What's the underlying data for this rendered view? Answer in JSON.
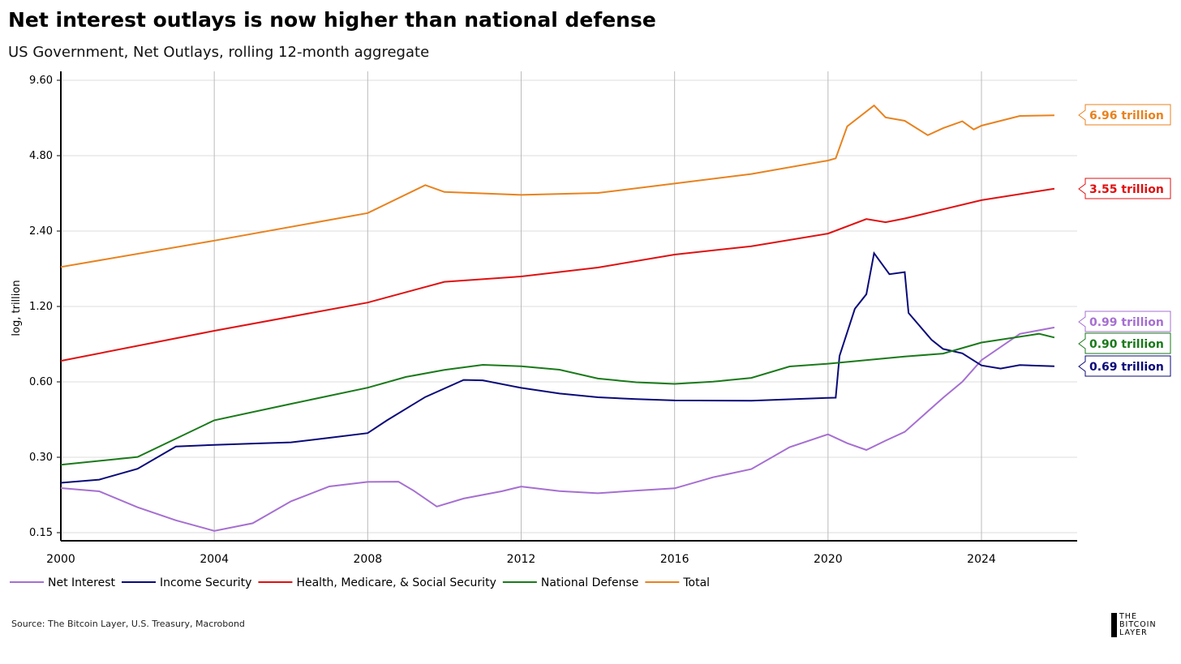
{
  "title": "Net interest outlays is now higher than national defense",
  "subtitle": "US Government, Net Outlays, rolling 12-month aggregate",
  "source": "Source: The Bitcoin Layer, U.S. Treasury, Macrobond",
  "logo": [
    "THE",
    "BITCOIN",
    "LAYER"
  ],
  "chart_data": {
    "type": "line",
    "title": "Net interest outlays is now higher than national defense",
    "ylabel": "log, trillion",
    "xlabel": "",
    "yscale": "log",
    "ylim": [
      0.15,
      9.6
    ],
    "xlim": [
      2000,
      2026.6
    ],
    "yticks": [
      "0.15",
      "0.30",
      "0.60",
      "1.20",
      "2.40",
      "4.80",
      "9.60"
    ],
    "xticks": [
      "2000",
      "2004",
      "2008",
      "2012",
      "2016",
      "2020",
      "2024"
    ],
    "grid": true,
    "legend": "bottom",
    "series": [
      {
        "name": "Net Interest",
        "color": "#a66fd1",
        "end_label": "0.99 trillion",
        "x": [
          2000,
          2001,
          2002,
          2003,
          2004,
          2005,
          2006,
          2007,
          2008,
          2008.8,
          2009.2,
          2009.8,
          2010.5,
          2011.5,
          2012,
          2013,
          2014,
          2015,
          2016,
          2017,
          2018,
          2019,
          2020,
          2020.5,
          2021,
          2021.5,
          2022,
          2023,
          2023.5,
          2024,
          2025,
          2025.9
        ],
        "y": [
          0.226,
          0.22,
          0.19,
          0.168,
          0.152,
          0.163,
          0.2,
          0.23,
          0.24,
          0.24,
          0.22,
          0.19,
          0.205,
          0.22,
          0.23,
          0.22,
          0.215,
          0.22,
          0.225,
          0.25,
          0.27,
          0.33,
          0.37,
          0.34,
          0.32,
          0.35,
          0.38,
          0.52,
          0.6,
          0.73,
          0.93,
          0.99
        ]
      },
      {
        "name": "Income Security",
        "color": "#0a0a7a",
        "end_label": "0.69 trillion",
        "x": [
          2000,
          2001,
          2002,
          2003,
          2004,
          2005,
          2006,
          2007,
          2008,
          2008.5,
          2009.5,
          2010.5,
          2011,
          2012,
          2013,
          2014,
          2015,
          2016,
          2018,
          2020,
          2020.2,
          2020.3,
          2020.7,
          2021,
          2021.2,
          2021.6,
          2022,
          2022.1,
          2022.7,
          2023,
          2023.5,
          2024,
          2024.5,
          2025,
          2025.9
        ],
        "y": [
          0.238,
          0.245,
          0.27,
          0.33,
          0.335,
          0.34,
          0.345,
          0.36,
          0.375,
          0.42,
          0.52,
          0.61,
          0.61,
          0.57,
          0.54,
          0.52,
          0.51,
          0.505,
          0.505,
          0.52,
          0.52,
          0.76,
          1.17,
          1.34,
          1.96,
          1.62,
          1.65,
          1.13,
          0.88,
          0.81,
          0.78,
          0.7,
          0.68,
          0.7,
          0.69
        ]
      },
      {
        "name": "Health, Medicare, & Social Security",
        "color": "#e01010",
        "end_label": "3.55 trillion",
        "x": [
          2000,
          2004,
          2008,
          2010,
          2012,
          2014,
          2016,
          2018,
          2020,
          2021,
          2021.5,
          2022,
          2024,
          2025.9
        ],
        "y": [
          0.73,
          0.96,
          1.24,
          1.5,
          1.58,
          1.72,
          1.94,
          2.09,
          2.34,
          2.67,
          2.6,
          2.7,
          3.2,
          3.55
        ]
      },
      {
        "name": "National Defense",
        "color": "#1a7a1a",
        "end_label": "0.90 trillion",
        "x": [
          2000,
          2002,
          2004,
          2006,
          2008,
          2009,
          2010,
          2011,
          2012,
          2013,
          2014,
          2015,
          2016,
          2017,
          2018,
          2019,
          2020,
          2022,
          2023,
          2024,
          2025.5,
          2025.9
        ],
        "y": [
          0.28,
          0.3,
          0.42,
          0.49,
          0.57,
          0.63,
          0.67,
          0.7,
          0.69,
          0.67,
          0.62,
          0.6,
          0.59,
          0.6,
          0.62,
          0.69,
          0.71,
          0.76,
          0.78,
          0.86,
          0.93,
          0.9
        ]
      },
      {
        "name": "Total",
        "color": "#e8821e",
        "end_label": "6.96 trillion",
        "x": [
          2000,
          2004,
          2008,
          2009.5,
          2010,
          2012,
          2014,
          2016,
          2018,
          2020,
          2020.2,
          2020.5,
          2021.2,
          2021.5,
          2022,
          2022.6,
          2023,
          2023.5,
          2023.8,
          2024,
          2025,
          2025.9
        ],
        "y": [
          1.72,
          2.19,
          2.83,
          3.67,
          3.45,
          3.35,
          3.4,
          3.7,
          4.05,
          4.6,
          4.7,
          6.3,
          7.6,
          6.8,
          6.6,
          5.8,
          6.2,
          6.6,
          6.1,
          6.3,
          6.9,
          6.96
        ]
      }
    ]
  }
}
